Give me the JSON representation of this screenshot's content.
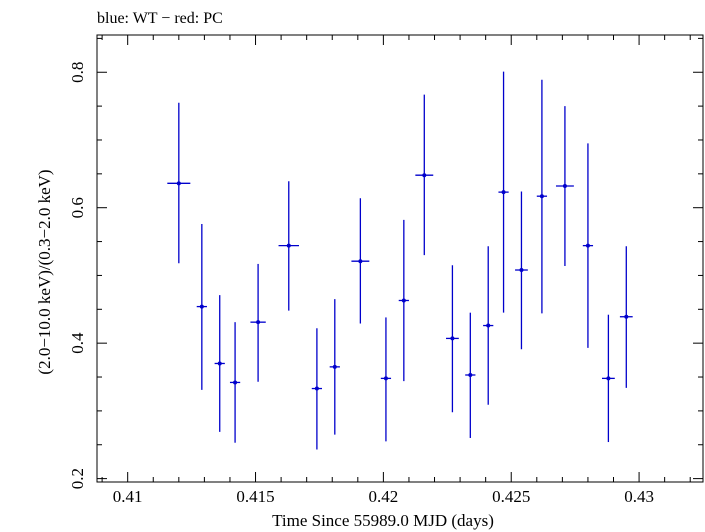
{
  "chart_data": {
    "type": "scatter",
    "title": "blue: WT − red: PC",
    "xlabel": "Time Since 55989.0 MJD (days)",
    "ylabel": "(2.0−10.0 keV)/(0.3−2.0 keV)",
    "xlim": [
      0.4088,
      0.4325
    ],
    "ylim": [
      0.195,
      0.855
    ],
    "xticks": [
      0.41,
      0.415,
      0.42,
      0.425,
      0.43
    ],
    "xtick_labels": [
      "0.41",
      "0.415",
      "0.42",
      "0.425",
      "0.43"
    ],
    "yticks": [
      0.2,
      0.4,
      0.6,
      0.8
    ],
    "ytick_labels": [
      "0.2",
      "0.4",
      "0.6",
      "0.8"
    ],
    "grid": false,
    "series": [
      {
        "color": "#0000cc",
        "points": [
          {
            "x": 0.412,
            "y": 0.636,
            "xerr": 0.00045,
            "ylo": 0.518,
            "yhi": 0.755
          },
          {
            "x": 0.4129,
            "y": 0.454,
            "xerr": 0.0002,
            "ylo": 0.331,
            "yhi": 0.576
          },
          {
            "x": 0.4136,
            "y": 0.37,
            "xerr": 0.0002,
            "ylo": 0.269,
            "yhi": 0.471
          },
          {
            "x": 0.4142,
            "y": 0.342,
            "xerr": 0.0002,
            "ylo": 0.253,
            "yhi": 0.431
          },
          {
            "x": 0.4151,
            "y": 0.431,
            "xerr": 0.0003,
            "ylo": 0.343,
            "yhi": 0.517
          },
          {
            "x": 0.4163,
            "y": 0.544,
            "xerr": 0.0004,
            "ylo": 0.448,
            "yhi": 0.639
          },
          {
            "x": 0.4174,
            "y": 0.333,
            "xerr": 0.0002,
            "ylo": 0.243,
            "yhi": 0.422
          },
          {
            "x": 0.4181,
            "y": 0.365,
            "xerr": 0.0002,
            "ylo": 0.265,
            "yhi": 0.465
          },
          {
            "x": 0.4191,
            "y": 0.521,
            "xerr": 0.00035,
            "ylo": 0.429,
            "yhi": 0.614
          },
          {
            "x": 0.4201,
            "y": 0.348,
            "xerr": 0.0002,
            "ylo": 0.255,
            "yhi": 0.438
          },
          {
            "x": 0.4208,
            "y": 0.463,
            "xerr": 0.0002,
            "ylo": 0.344,
            "yhi": 0.582
          },
          {
            "x": 0.4216,
            "y": 0.648,
            "xerr": 0.00035,
            "ylo": 0.53,
            "yhi": 0.767
          },
          {
            "x": 0.4227,
            "y": 0.407,
            "xerr": 0.00025,
            "ylo": 0.298,
            "yhi": 0.515
          },
          {
            "x": 0.4234,
            "y": 0.353,
            "xerr": 0.0002,
            "ylo": 0.26,
            "yhi": 0.445
          },
          {
            "x": 0.4241,
            "y": 0.426,
            "xerr": 0.0002,
            "ylo": 0.309,
            "yhi": 0.543
          },
          {
            "x": 0.4247,
            "y": 0.623,
            "xerr": 0.0002,
            "ylo": 0.445,
            "yhi": 0.801
          },
          {
            "x": 0.4254,
            "y": 0.508,
            "xerr": 0.00025,
            "ylo": 0.391,
            "yhi": 0.624
          },
          {
            "x": 0.4262,
            "y": 0.617,
            "xerr": 0.0002,
            "ylo": 0.444,
            "yhi": 0.789
          },
          {
            "x": 0.4271,
            "y": 0.632,
            "xerr": 0.00035,
            "ylo": 0.514,
            "yhi": 0.75
          },
          {
            "x": 0.428,
            "y": 0.544,
            "xerr": 0.0002,
            "ylo": 0.393,
            "yhi": 0.695
          },
          {
            "x": 0.4288,
            "y": 0.348,
            "xerr": 0.00025,
            "ylo": 0.254,
            "yhi": 0.442
          },
          {
            "x": 0.4295,
            "y": 0.439,
            "xerr": 0.00025,
            "ylo": 0.334,
            "yhi": 0.543
          }
        ]
      }
    ]
  }
}
